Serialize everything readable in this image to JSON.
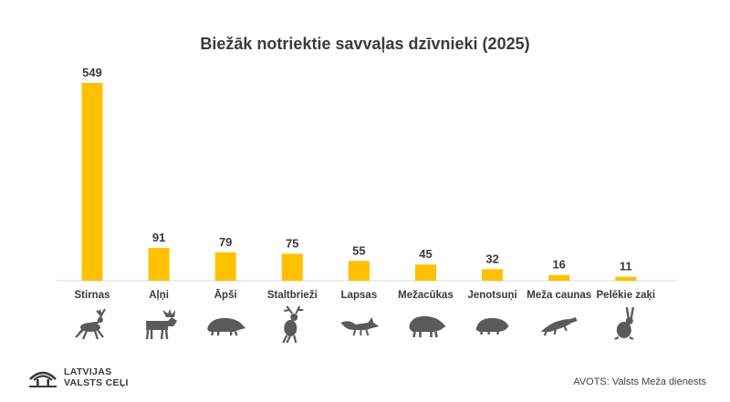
{
  "title": "Biežāk notriektie savvaļas dzīvnieki (2025)",
  "chart_data": {
    "type": "bar",
    "categories": [
      "Stirnas",
      "Aļņi",
      "Āpši",
      "Staltbrieži",
      "Lapsas",
      "Mežacūkas",
      "Jenotsuņi",
      "Meža caunas",
      "Pelēkie zaķi"
    ],
    "values": [
      549,
      91,
      79,
      75,
      55,
      45,
      32,
      16,
      11
    ],
    "ylim": [
      0,
      549
    ],
    "grid": false,
    "data_labels": true
  },
  "icons": [
    "deer-icon",
    "moose-icon",
    "badger-icon",
    "red-deer-icon",
    "fox-icon",
    "wild-boar-icon",
    "raccoon-dog-icon",
    "marten-icon",
    "hare-icon"
  ],
  "colors": {
    "bar": "#FFC000",
    "icon": "#5a5a5a",
    "text": "#3a3a3a",
    "baseline": "#d9d9d9"
  },
  "footer": {
    "logo_line1": "LATVIJAS",
    "logo_line2": "VALSTS CEĻI",
    "source": "AVOTS: Valsts Meža dienests"
  }
}
